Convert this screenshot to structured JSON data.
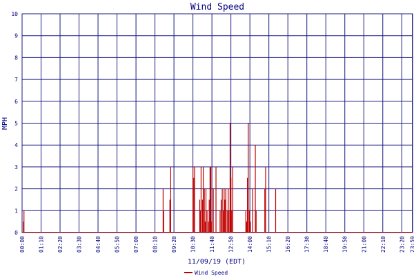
{
  "chart_data": {
    "type": "bar",
    "title": "Wind Speed",
    "xlabel": "11/09/19 (EDT)",
    "ylabel": "MPH",
    "ylim": [
      0,
      10
    ],
    "yticks": [
      0,
      1,
      2,
      3,
      4,
      5,
      6,
      7,
      8,
      9,
      10
    ],
    "xticks": [
      "00:00",
      "01:10",
      "02:20",
      "03:30",
      "04:40",
      "05:50",
      "07:00",
      "08:10",
      "09:20",
      "10:30",
      "11:40",
      "12:50",
      "14:00",
      "15:10",
      "16:20",
      "17:30",
      "18:40",
      "19:50",
      "21:00",
      "22:10",
      "23:20",
      "23:59"
    ],
    "grid": true,
    "legend_position": "bottom",
    "colors": {
      "series": "#c00000",
      "grid": "#1a1a80",
      "text": "#000080"
    },
    "series": [
      {
        "name": "Wind Speed",
        "points": [
          [
            "00:05",
            0.5
          ],
          [
            "00:07",
            1.0
          ],
          [
            "08:40",
            2.0
          ],
          [
            "08:42",
            1.0
          ],
          [
            "09:05",
            1.5
          ],
          [
            "09:08",
            3.0
          ],
          [
            "10:30",
            3.0
          ],
          [
            "10:33",
            2.5
          ],
          [
            "10:36",
            3.0
          ],
          [
            "10:55",
            1.5
          ],
          [
            "10:58",
            1.0
          ],
          [
            "11:00",
            3.0
          ],
          [
            "11:05",
            1.5
          ],
          [
            "11:08",
            3.0
          ],
          [
            "11:12",
            2.0
          ],
          [
            "11:15",
            0.5
          ],
          [
            "11:18",
            2.0
          ],
          [
            "11:22",
            1.0
          ],
          [
            "11:27",
            0.5
          ],
          [
            "11:30",
            1.5
          ],
          [
            "11:33",
            3.0
          ],
          [
            "11:36",
            3.0
          ],
          [
            "11:39",
            0.5
          ],
          [
            "11:45",
            2.0
          ],
          [
            "11:55",
            3.0
          ],
          [
            "12:10",
            1.0
          ],
          [
            "12:14",
            1.5
          ],
          [
            "12:18",
            2.0
          ],
          [
            "12:22",
            1.0
          ],
          [
            "12:25",
            2.0
          ],
          [
            "12:28",
            1.5
          ],
          [
            "12:31",
            2.0
          ],
          [
            "12:36",
            1.0
          ],
          [
            "12:40",
            2.0
          ],
          [
            "12:43",
            1.0
          ],
          [
            "12:47",
            5.0
          ],
          [
            "12:50",
            2.5
          ],
          [
            "12:53",
            1.0
          ],
          [
            "12:57",
            3.0
          ],
          [
            "13:45",
            1.0
          ],
          [
            "13:48",
            0.5
          ],
          [
            "13:51",
            2.5
          ],
          [
            "13:54",
            5.0
          ],
          [
            "13:58",
            1.0
          ],
          [
            "14:02",
            0.5
          ],
          [
            "14:10",
            2.0
          ],
          [
            "14:20",
            4.0
          ],
          [
            "14:23",
            1.0
          ],
          [
            "14:55",
            2.0
          ],
          [
            "14:58",
            3.0
          ],
          [
            "15:35",
            2.0
          ]
        ]
      }
    ]
  }
}
